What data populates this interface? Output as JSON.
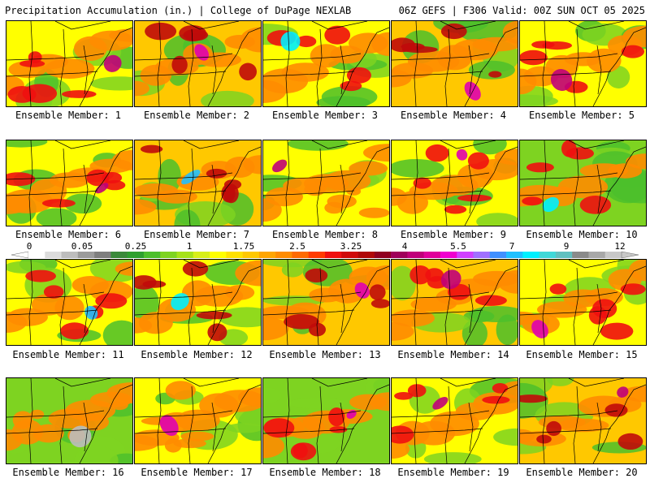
{
  "header": {
    "left": "Precipitation Accumulation (in.) | College of DuPage NEXLAB",
    "right": "06Z GEFS | F306 Valid: 00Z SUN OCT 05 2025"
  },
  "members": [
    {
      "caption": "Ensemble Member: 1"
    },
    {
      "caption": "Ensemble Member: 2"
    },
    {
      "caption": "Ensemble Member: 3"
    },
    {
      "caption": "Ensemble Member: 4"
    },
    {
      "caption": "Ensemble Member: 5"
    },
    {
      "caption": "Ensemble Member: 6"
    },
    {
      "caption": "Ensemble Member: 7"
    },
    {
      "caption": "Ensemble Member: 8"
    },
    {
      "caption": "Ensemble Member: 9"
    },
    {
      "caption": "Ensemble Member: 10"
    },
    {
      "caption": "Ensemble Member: 11"
    },
    {
      "caption": "Ensemble Member: 12"
    },
    {
      "caption": "Ensemble Member: 13"
    },
    {
      "caption": "Ensemble Member: 14"
    },
    {
      "caption": "Ensemble Member: 15"
    },
    {
      "caption": "Ensemble Member: 16"
    },
    {
      "caption": "Ensemble Member: 17"
    },
    {
      "caption": "Ensemble Member: 18"
    },
    {
      "caption": "Ensemble Member: 19"
    },
    {
      "caption": "Ensemble Member: 20"
    }
  ],
  "colorbar": {
    "labels": [
      "0",
      "0.05",
      "0.25",
      "1",
      "1.75",
      "2.5",
      "3.25",
      "4",
      "5.5",
      "7",
      "9",
      "12"
    ],
    "colors": [
      "#ffffff",
      "#dcdcdc",
      "#bdbdbd",
      "#9b9b9b",
      "#7f7f7f",
      "#3a8a3a",
      "#2ea02e",
      "#4cbf2c",
      "#7ed321",
      "#a6e21a",
      "#d7ef1a",
      "#ffff00",
      "#ffe100",
      "#ffc800",
      "#ffa500",
      "#ff8c00",
      "#ff6a00",
      "#ff3b00",
      "#f01010",
      "#d00a0a",
      "#b00808",
      "#900020",
      "#a0005a",
      "#c0007a",
      "#e0009a",
      "#f000d0",
      "#d040ff",
      "#a070ff",
      "#4090ff",
      "#20c0ff",
      "#00f0ff",
      "#40d8d8",
      "#60c0c0",
      "#8a8a8a",
      "#a8a8a8",
      "#c8c8c8"
    ]
  }
}
